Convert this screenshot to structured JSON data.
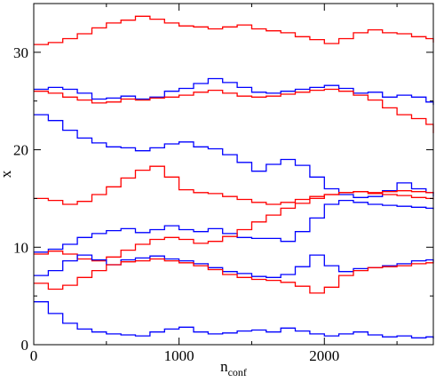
{
  "chart_data": {
    "type": "line",
    "title": "",
    "xlabel": "n",
    "xlabel_sub": "conf",
    "ylabel": "x",
    "xlim": [
      0,
      2750
    ],
    "ylim": [
      0,
      35
    ],
    "x_ticks": [
      0,
      1000,
      2000
    ],
    "x_tick_labels": [
      "0",
      "1000",
      "2000"
    ],
    "y_ticks": [
      0,
      10,
      20,
      30
    ],
    "y_tick_labels": [
      "0",
      "10",
      "20",
      "30"
    ],
    "grid": false,
    "legend": "none",
    "line_style": "step",
    "colors": {
      "red": "#ff0000",
      "blue": "#0000ff"
    },
    "series": [
      {
        "color": "red",
        "x": [
          0,
          100,
          200,
          300,
          400,
          500,
          600,
          700,
          800,
          900,
          1000,
          1100,
          1200,
          1300,
          1400,
          1500,
          1600,
          1700,
          1800,
          1900,
          2000,
          2100,
          2200,
          2300,
          2400,
          2500,
          2600,
          2700,
          2750
        ],
        "y": [
          30.8,
          31.0,
          31.4,
          31.9,
          32.5,
          33.0,
          33.3,
          33.7,
          33.4,
          33.0,
          32.7,
          32.6,
          32.4,
          32.6,
          32.8,
          32.4,
          32.2,
          32.0,
          31.6,
          31.3,
          30.9,
          31.4,
          32.0,
          32.3,
          32.0,
          31.9,
          31.6,
          31.4,
          31.0
        ]
      },
      {
        "color": "blue",
        "x": [
          0,
          100,
          200,
          300,
          400,
          500,
          600,
          700,
          800,
          900,
          1000,
          1100,
          1200,
          1300,
          1400,
          1500,
          1600,
          1700,
          1800,
          1900,
          2000,
          2100,
          2200,
          2300,
          2400,
          2500,
          2600,
          2700,
          2750
        ],
        "y": [
          26.2,
          26.4,
          26.2,
          25.8,
          25.2,
          25.3,
          25.5,
          25.2,
          25.4,
          26.0,
          26.3,
          26.8,
          27.3,
          26.9,
          26.4,
          25.9,
          25.8,
          26.0,
          26.2,
          26.4,
          26.6,
          26.3,
          25.8,
          25.9,
          25.4,
          25.6,
          25.4,
          24.9,
          24.6
        ]
      },
      {
        "color": "red",
        "x": [
          0,
          100,
          200,
          300,
          400,
          500,
          600,
          700,
          800,
          900,
          1000,
          1100,
          1200,
          1300,
          1400,
          1500,
          1600,
          1700,
          1800,
          1900,
          2000,
          2100,
          2200,
          2300,
          2400,
          2500,
          2600,
          2700,
          2750
        ],
        "y": [
          26.0,
          25.8,
          25.4,
          25.1,
          24.8,
          24.9,
          25.2,
          25.1,
          25.3,
          25.4,
          25.6,
          25.9,
          26.1,
          25.8,
          25.5,
          25.4,
          25.5,
          25.7,
          25.9,
          26.1,
          26.2,
          26.0,
          25.6,
          25.1,
          24.3,
          23.6,
          23.2,
          22.6,
          21.7
        ]
      },
      {
        "color": "blue",
        "x": [
          0,
          100,
          200,
          300,
          400,
          500,
          600,
          700,
          800,
          900,
          1000,
          1100,
          1200,
          1300,
          1400,
          1500,
          1600,
          1700,
          1800,
          1900,
          2000,
          2100,
          2200,
          2300,
          2400,
          2500,
          2600,
          2700,
          2750
        ],
        "y": [
          23.6,
          23.0,
          22.0,
          21.2,
          20.7,
          20.3,
          20.2,
          19.9,
          20.2,
          20.6,
          20.8,
          20.3,
          20.1,
          19.5,
          18.7,
          17.8,
          18.5,
          19.0,
          18.4,
          17.2,
          16.0,
          15.4,
          15.1,
          15.2,
          15.8,
          16.6,
          16.0,
          15.6,
          15.2
        ]
      },
      {
        "color": "red",
        "x": [
          0,
          100,
          200,
          300,
          400,
          500,
          600,
          700,
          800,
          900,
          1000,
          1100,
          1200,
          1300,
          1400,
          1500,
          1600,
          1700,
          1800,
          1900,
          2000,
          2100,
          2200,
          2300,
          2400,
          2500,
          2600,
          2700,
          2750
        ],
        "y": [
          15.0,
          14.8,
          14.4,
          14.7,
          15.4,
          16.2,
          17.1,
          17.9,
          18.3,
          17.2,
          15.9,
          15.6,
          15.5,
          15.2,
          14.9,
          14.6,
          14.4,
          14.6,
          14.9,
          15.2,
          15.4,
          15.6,
          15.7,
          15.6,
          15.7,
          15.8,
          15.7,
          15.6,
          15.5
        ]
      },
      {
        "color": "blue",
        "x": [
          0,
          100,
          200,
          300,
          400,
          500,
          600,
          700,
          800,
          900,
          1000,
          1100,
          1200,
          1300,
          1400,
          1500,
          1600,
          1700,
          1800,
          1900,
          2000,
          2100,
          2200,
          2300,
          2400,
          2500,
          2600,
          2700,
          2750
        ],
        "y": [
          9.5,
          9.8,
          10.3,
          11.0,
          11.4,
          11.7,
          11.9,
          11.5,
          11.8,
          12.2,
          11.8,
          11.6,
          11.9,
          11.4,
          11.0,
          10.9,
          10.9,
          10.6,
          11.6,
          13.0,
          14.4,
          14.8,
          14.6,
          14.4,
          14.3,
          14.2,
          14.1,
          14.0,
          13.9
        ]
      },
      {
        "color": "red",
        "x": [
          0,
          100,
          200,
          300,
          400,
          500,
          600,
          700,
          800,
          900,
          1000,
          1100,
          1200,
          1300,
          1400,
          1500,
          1600,
          1700,
          1800,
          1900,
          2000,
          2100,
          2200,
          2300,
          2400,
          2500,
          2600,
          2700,
          2750
        ],
        "y": [
          9.3,
          9.6,
          9.3,
          8.8,
          8.6,
          9.0,
          9.7,
          10.3,
          10.8,
          11.0,
          10.8,
          10.4,
          10.6,
          11.1,
          11.8,
          12.6,
          13.3,
          14.0,
          14.5,
          15.0,
          15.4,
          15.6,
          15.7,
          15.5,
          15.4,
          15.3,
          15.1,
          15.0,
          14.9
        ]
      },
      {
        "color": "blue",
        "x": [
          0,
          100,
          200,
          300,
          400,
          500,
          600,
          700,
          800,
          900,
          1000,
          1100,
          1200,
          1300,
          1400,
          1500,
          1600,
          1700,
          1800,
          1900,
          2000,
          2100,
          2200,
          2300,
          2400,
          2500,
          2600,
          2700,
          2750
        ],
        "y": [
          7.1,
          7.6,
          8.6,
          9.2,
          8.7,
          8.2,
          8.7,
          8.9,
          9.1,
          8.8,
          8.6,
          8.3,
          7.9,
          7.5,
          7.3,
          7.0,
          6.9,
          7.2,
          8.0,
          9.2,
          8.1,
          7.5,
          7.8,
          7.9,
          8.1,
          8.3,
          8.6,
          8.7,
          8.5
        ]
      },
      {
        "color": "red",
        "x": [
          0,
          100,
          200,
          300,
          400,
          500,
          600,
          700,
          800,
          900,
          1000,
          1100,
          1200,
          1300,
          1400,
          1500,
          1600,
          1700,
          1800,
          1900,
          2000,
          2100,
          2200,
          2300,
          2400,
          2500,
          2600,
          2700,
          2750
        ],
        "y": [
          6.3,
          5.7,
          6.1,
          6.9,
          7.6,
          8.2,
          8.5,
          8.6,
          8.8,
          8.6,
          8.4,
          8.1,
          7.7,
          7.2,
          6.9,
          6.7,
          6.6,
          6.4,
          6.0,
          5.3,
          5.9,
          7.1,
          7.6,
          7.9,
          8.0,
          8.1,
          8.3,
          8.4,
          8.5
        ]
      },
      {
        "color": "blue",
        "x": [
          0,
          100,
          200,
          300,
          400,
          500,
          600,
          700,
          800,
          900,
          1000,
          1100,
          1200,
          1300,
          1400,
          1500,
          1600,
          1700,
          1800,
          1900,
          2000,
          2100,
          2200,
          2300,
          2400,
          2500,
          2600,
          2700,
          2750
        ],
        "y": [
          4.4,
          3.2,
          2.2,
          1.6,
          1.3,
          1.1,
          1.0,
          0.9,
          1.3,
          1.6,
          1.8,
          1.3,
          1.1,
          1.2,
          1.4,
          1.5,
          1.3,
          1.7,
          1.4,
          1.1,
          0.9,
          1.1,
          1.3,
          1.0,
          0.8,
          0.9,
          0.7,
          0.8,
          0.6
        ]
      }
    ]
  }
}
